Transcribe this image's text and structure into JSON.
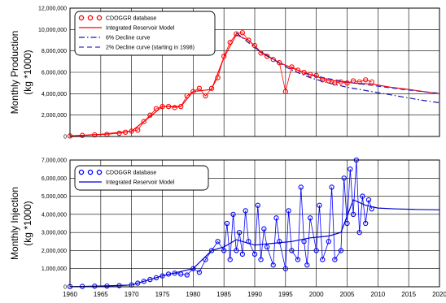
{
  "chart_data": [
    {
      "type": "scatter",
      "title": "",
      "xlabel": "",
      "ylabel_lines": [
        "Monthly Production",
        "(kg *1000)"
      ],
      "xlim": [
        1960,
        2020
      ],
      "ylim": [
        0,
        12000000
      ],
      "xticks": [
        1960,
        1965,
        1970,
        1975,
        1980,
        1985,
        1990,
        1995,
        2000,
        2005,
        2010,
        2015,
        2020
      ],
      "yticks": [
        0,
        2000000,
        4000000,
        6000000,
        8000000,
        10000000,
        12000000
      ],
      "ytick_labels": [
        "0",
        "2,000,000",
        "4,000,000",
        "6,000,000",
        "8,000,000",
        "10,000,000",
        "12,000,000"
      ],
      "grid": true,
      "legend_position": "top-left",
      "colors": {
        "data": "#ff0000",
        "model": "#ff0000",
        "decline6": "#1a1aa8",
        "decline2": "#3333cc"
      },
      "series": [
        {
          "name": "CDOGGR database",
          "style": "markers",
          "x": [
            1960,
            1962,
            1964,
            1966,
            1968,
            1969,
            1970,
            1971,
            1972,
            1973,
            1974,
            1975,
            1976,
            1977,
            1978,
            1979,
            1980,
            1981,
            1982,
            1983,
            1984,
            1985,
            1986,
            1987,
            1988,
            1989,
            1990,
            1991,
            1992,
            1993,
            1994,
            1995,
            1996,
            1997,
            1998,
            1999,
            2000,
            2001,
            2002,
            2003,
            2004,
            2005,
            2006,
            2007,
            2008,
            2009
          ],
          "y": [
            50000,
            100000,
            150000,
            200000,
            300000,
            400000,
            500000,
            600000,
            1400000,
            2000000,
            2600000,
            2800000,
            2800000,
            2700000,
            2800000,
            3800000,
            4200000,
            4500000,
            3800000,
            4500000,
            5500000,
            7500000,
            8800000,
            9600000,
            9700000,
            9000000,
            8500000,
            7800000,
            7500000,
            7200000,
            6900000,
            4200000,
            6500000,
            6200000,
            6000000,
            5800000,
            5700000,
            5300000,
            5200000,
            5000000,
            5100000,
            5000000,
            5200000,
            5100000,
            5300000,
            5100000
          ]
        },
        {
          "name": "Integrated Reservoir Model",
          "style": "solid",
          "x": [
            1960,
            1965,
            1970,
            1972,
            1975,
            1978,
            1980,
            1983,
            1985,
            1987,
            1989,
            1991,
            1994,
            1997,
            2000,
            2003,
            2006,
            2009,
            2012,
            2015,
            2018,
            2020
          ],
          "y": [
            50000,
            200000,
            500000,
            1400000,
            2800000,
            2800000,
            4200000,
            4400000,
            7400000,
            9500000,
            9000000,
            7900000,
            6900000,
            6200000,
            5600000,
            5200000,
            5000000,
            4900000,
            4600000,
            4400000,
            4150000,
            4000000
          ]
        },
        {
          "name": "6% Decline curve",
          "style": "dash-dot",
          "x": [
            1987,
            1990,
            1993,
            1996,
            1999,
            2002,
            2005,
            2008,
            2011,
            2014,
            2017,
            2020
          ],
          "y": [
            9700000,
            8300000,
            7200000,
            6200000,
            5500000,
            5000000,
            4600000,
            4300000,
            4000000,
            3700000,
            3400000,
            3150000
          ]
        },
        {
          "name": "2% Decline curve (starting in 1998)",
          "style": "dashed",
          "x": [
            1998,
            2002,
            2006,
            2010,
            2014,
            2018,
            2020
          ],
          "y": [
            5900000,
            5400000,
            5000000,
            4700000,
            4400000,
            4150000,
            4050000
          ]
        }
      ]
    },
    {
      "type": "scatter",
      "title": "",
      "xlabel": "",
      "ylabel_lines": [
        "Monthly Injection",
        "(kg *1000)"
      ],
      "xlim": [
        1960,
        2020
      ],
      "ylim": [
        0,
        7000000
      ],
      "xticks": [
        1960,
        1965,
        1970,
        1975,
        1980,
        1985,
        1990,
        1995,
        2000,
        2005,
        2010,
        2015,
        2020
      ],
      "xtick_labels": [
        "1960",
        "1965",
        "1970",
        "1975",
        "1980",
        "1985",
        "1990",
        "1995",
        "2000",
        "2005",
        "2010",
        "2015",
        "2020"
      ],
      "yticks": [
        0,
        1000000,
        2000000,
        3000000,
        4000000,
        5000000,
        6000000,
        7000000
      ],
      "ytick_labels": [
        "0",
        "1,000,000",
        "2,000,000",
        "3,000,000",
        "4,000,000",
        "5,000,000",
        "6,000,000",
        "7,000,000"
      ],
      "grid": true,
      "legend_position": "top-left",
      "colors": {
        "data": "#0000ff",
        "model": "#0000cc"
      },
      "series": [
        {
          "name": "CDOGGR database",
          "style": "markers",
          "x": [
            1960,
            1962,
            1964,
            1966,
            1968,
            1970,
            1971,
            1972,
            1973,
            1974,
            1975,
            1976,
            1977,
            1978,
            1979,
            1980,
            1981,
            1982,
            1983,
            1984,
            1985,
            1985.5,
            1986,
            1986.5,
            1987,
            1987.5,
            1988,
            1988.5,
            1989,
            1990,
            1990.5,
            1991,
            1991.5,
            1992,
            1993,
            1993.5,
            1994,
            1995,
            1995.5,
            1996,
            1997,
            1997.5,
            1998,
            1998.5,
            1999,
            2000,
            2000.5,
            2001,
            2002,
            2002.5,
            2003,
            2004,
            2004.5,
            2005,
            2005.5,
            2006,
            2006.5,
            2007,
            2007.5,
            2008,
            2008.5,
            2009
          ],
          "y": [
            10000,
            20000,
            30000,
            40000,
            60000,
            100000,
            200000,
            300000,
            400000,
            500000,
            600000,
            700000,
            750000,
            700000,
            650000,
            1000000,
            800000,
            1500000,
            2000000,
            2500000,
            2000000,
            3500000,
            1500000,
            4000000,
            2000000,
            3000000,
            1800000,
            4200000,
            2500000,
            1800000,
            4500000,
            1500000,
            3200000,
            2200000,
            1200000,
            3800000,
            2500000,
            1000000,
            4200000,
            2000000,
            1500000,
            5500000,
            2500000,
            1200000,
            3800000,
            2000000,
            4500000,
            1500000,
            2500000,
            5500000,
            1500000,
            2000000,
            6000000,
            3500000,
            6500000,
            4000000,
            7000000,
            3000000,
            5000000,
            3500000,
            4800000,
            4300000
          ]
        },
        {
          "name": "Integrated Reservoir Model",
          "style": "solid",
          "x": [
            1960,
            1965,
            1970,
            1975,
            1980,
            1983,
            1985,
            1987,
            1990,
            1993,
            1996,
            1999,
            2002,
            2004,
            2006,
            2008,
            2010,
            2013,
            2016,
            2020
          ],
          "y": [
            10000,
            40000,
            100000,
            600000,
            1000000,
            2000000,
            2200000,
            2600000,
            2300000,
            2400000,
            2500000,
            2700000,
            2800000,
            3000000,
            4800000,
            4500000,
            4350000,
            4300000,
            4270000,
            4250000
          ]
        }
      ]
    }
  ]
}
